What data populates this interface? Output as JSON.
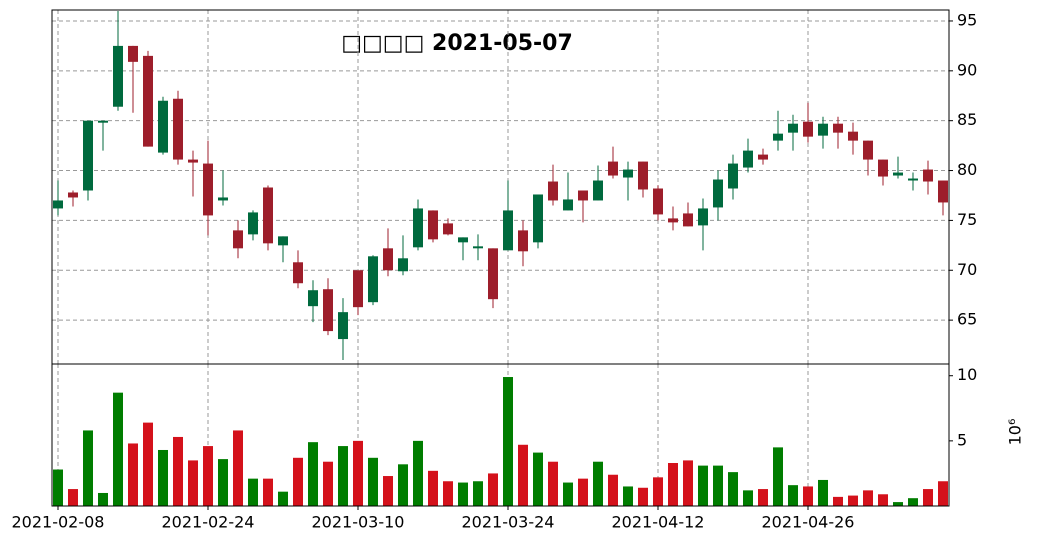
{
  "chart_data": {
    "type": "candlestick",
    "title": "□□□□ 2021-05-07",
    "open": [
      77.0,
      77.3,
      85.0,
      85.0,
      92.5,
      90.9,
      82.4,
      87.0,
      81.1,
      80.8,
      75.5,
      77.3,
      72.2,
      75.8,
      72.7,
      73.4,
      68.7,
      68.0,
      63.9,
      65.8,
      66.3,
      71.4,
      70.0,
      71.2,
      76.2,
      73.1,
      73.6,
      73.3,
      72.4,
      67.1,
      76.0,
      71.9,
      77.6,
      77.0,
      77.1,
      77.0,
      79.0,
      79.5,
      80.1,
      78.1,
      75.6,
      74.8,
      74.4,
      76.2,
      79.1,
      80.7,
      82.0,
      81.1,
      83.7,
      84.7,
      83.4,
      84.7,
      83.8,
      83.0,
      81.1,
      79.4,
      79.8,
      79.2,
      78.9,
      76.8
    ],
    "high": [
      79.0,
      78.0,
      85.0,
      85.0,
      96.0,
      92.5,
      92.0,
      87.4,
      88.0,
      82.0,
      83.0,
      80.0,
      75.0,
      76.0,
      78.5,
      73.4,
      72.0,
      69.0,
      69.2,
      67.2,
      70.0,
      71.5,
      74.2,
      73.5,
      77.1,
      76.0,
      75.2,
      73.3,
      73.6,
      72.2,
      79.0,
      75.0,
      77.6,
      80.6,
      79.8,
      78.0,
      80.5,
      82.4,
      80.9,
      80.9,
      78.5,
      76.4,
      76.8,
      77.2,
      80.0,
      81.6,
      83.2,
      82.2,
      86.0,
      85.6,
      86.8,
      85.4,
      85.4,
      84.8,
      83.0,
      81.1,
      81.4,
      79.8,
      81.0,
      79.0
    ],
    "low": [
      75.5,
      76.4,
      77.0,
      82.0,
      86.0,
      85.8,
      82.4,
      81.6,
      80.6,
      77.4,
      73.5,
      76.5,
      71.2,
      73.0,
      72.0,
      70.8,
      68.2,
      64.8,
      63.5,
      61.0,
      65.5,
      66.5,
      69.4,
      69.5,
      72.0,
      72.8,
      73.5,
      71.0,
      71.0,
      66.2,
      72.0,
      70.4,
      72.2,
      76.5,
      76.0,
      74.8,
      77.0,
      79.2,
      77.0,
      77.3,
      75.0,
      74.0,
      74.4,
      72.0,
      75.0,
      77.1,
      79.8,
      80.6,
      82.0,
      82.0,
      82.8,
      82.2,
      82.2,
      81.6,
      79.5,
      78.5,
      79.2,
      78.0,
      77.6,
      75.5
    ],
    "close": [
      76.2,
      77.8,
      78.0,
      84.8,
      86.4,
      92.5,
      91.5,
      81.8,
      87.2,
      81.1,
      80.7,
      77.0,
      74.0,
      73.6,
      78.3,
      72.5,
      70.8,
      66.4,
      68.1,
      63.1,
      70.0,
      66.8,
      72.2,
      69.9,
      72.3,
      76.0,
      74.7,
      72.8,
      72.2,
      72.2,
      72.0,
      74.0,
      72.8,
      78.9,
      76.0,
      78.0,
      77.0,
      80.9,
      79.3,
      80.9,
      78.2,
      75.2,
      75.7,
      74.5,
      76.3,
      78.2,
      80.3,
      81.6,
      83.0,
      83.8,
      84.9,
      83.5,
      84.7,
      83.9,
      83.0,
      81.1,
      79.5,
      79.0,
      80.1,
      79.0
    ],
    "volume": [
      2.8,
      1.3,
      5.8,
      1.0,
      8.7,
      4.8,
      6.4,
      4.3,
      5.3,
      3.5,
      4.6,
      3.6,
      5.8,
      2.1,
      2.1,
      1.1,
      3.7,
      4.9,
      3.4,
      4.6,
      5.0,
      3.7,
      2.3,
      3.2,
      5.0,
      2.7,
      1.9,
      1.8,
      1.9,
      2.5,
      9.9,
      4.7,
      4.1,
      3.4,
      1.8,
      2.1,
      3.4,
      2.4,
      1.5,
      1.4,
      2.2,
      3.3,
      3.5,
      3.1,
      3.1,
      2.6,
      1.2,
      1.3,
      4.5,
      1.6,
      1.5,
      2.0,
      0.7,
      0.8,
      1.2,
      0.9,
      0.3,
      0.6,
      1.3,
      1.9
    ],
    "up_color": "#9d1e2b",
    "down_color": "#006a3e",
    "volume_up_color": "#d4111b",
    "volume_down_color": "#007d00",
    "xlim": [
      -0.4,
      59.4
    ],
    "xticks": [
      {
        "value": 0,
        "label": "2021-02-08"
      },
      {
        "value": 10,
        "label": "2021-02-24"
      },
      {
        "value": 20,
        "label": "2021-03-10"
      },
      {
        "value": 30,
        "label": "2021-03-24"
      },
      {
        "value": 40,
        "label": "2021-04-12"
      },
      {
        "value": 50,
        "label": "2021-04-26"
      }
    ],
    "ylim": [
      60.6,
      96.1
    ],
    "yticks": [
      65,
      70,
      75,
      80,
      85,
      90,
      95
    ],
    "volume_ylim": [
      0,
      10.9
    ],
    "volume_yticks": [
      5,
      10
    ],
    "volume_unit": "10⁶",
    "grid": true
  }
}
